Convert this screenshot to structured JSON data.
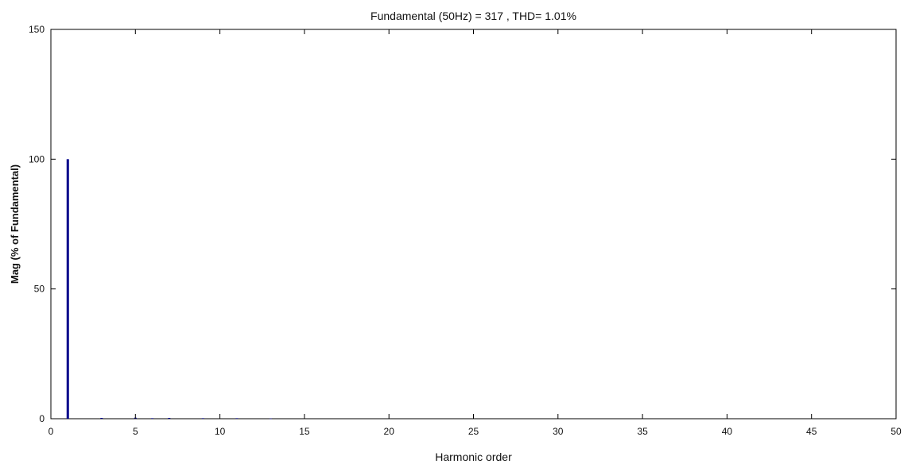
{
  "chart_data": {
    "type": "bar",
    "title": "Fundamental (50Hz) = 317 , THD= 1.01%",
    "xlabel": "Harmonic order",
    "ylabel": "Mag (% of Fundamental)",
    "xlim": [
      0,
      50
    ],
    "ylim": [
      0,
      150
    ],
    "xticks": [
      0,
      5,
      10,
      15,
      20,
      25,
      30,
      35,
      40,
      45,
      50
    ],
    "yticks": [
      0,
      50,
      100,
      150
    ],
    "grid": false,
    "legend": "none",
    "bar_color": "#00008b",
    "series": [
      {
        "x": [
          1,
          3,
          5,
          6,
          7,
          9,
          11,
          13
        ],
        "values": [
          100,
          0.3,
          0.4,
          0.2,
          0.3,
          0.2,
          0.2,
          0.1
        ]
      }
    ]
  }
}
